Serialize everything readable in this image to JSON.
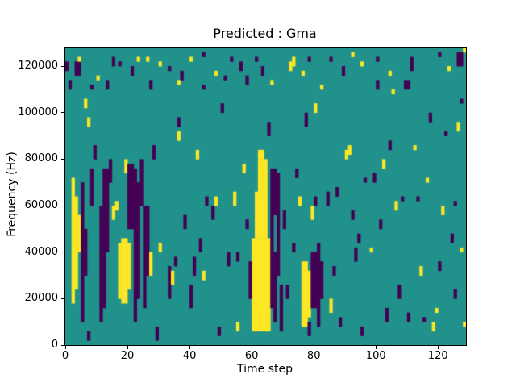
{
  "chart_data": {
    "type": "heatmap",
    "title": "Predicted : Gma",
    "xlabel": "Time step",
    "ylabel": "Frequency (Hz)",
    "x_range": [
      0,
      129
    ],
    "y_range": [
      0,
      128000
    ],
    "x_ticks": [
      0,
      20,
      40,
      60,
      80,
      100,
      120
    ],
    "y_ticks": [
      0,
      20000,
      40000,
      60000,
      80000,
      100000,
      120000
    ],
    "cell_size": [
      1,
      2000
    ],
    "colors": {
      "background": "#21918c",
      "y": "#fde725",
      "p": "#440154"
    },
    "legend": "none",
    "grid": false,
    "blocks": [
      [
        0,
        59,
        1,
        2,
        "p"
      ],
      [
        1,
        55,
        1,
        2,
        "p"
      ],
      [
        2,
        9,
        1,
        27,
        "y"
      ],
      [
        3,
        12,
        1,
        20,
        "y"
      ],
      [
        4,
        20,
        1,
        8,
        "y"
      ],
      [
        3,
        58,
        2,
        3,
        "p"
      ],
      [
        4,
        61,
        1,
        1,
        "y"
      ],
      [
        5,
        5,
        1,
        30,
        "p"
      ],
      [
        6,
        15,
        1,
        10,
        "p"
      ],
      [
        6,
        51,
        1,
        2,
        "y"
      ],
      [
        7,
        47,
        1,
        2,
        "y"
      ],
      [
        7,
        1,
        1,
        2,
        "p"
      ],
      [
        8,
        30,
        1,
        8,
        "p"
      ],
      [
        9,
        40,
        1,
        3,
        "p"
      ],
      [
        11,
        5,
        1,
        25,
        "p"
      ],
      [
        12,
        8,
        1,
        30,
        "p"
      ],
      [
        13,
        20,
        1,
        18,
        "p"
      ],
      [
        14,
        35,
        1,
        5,
        "p"
      ],
      [
        15,
        27,
        1,
        3,
        "y"
      ],
      [
        16,
        29,
        1,
        2,
        "y"
      ],
      [
        13,
        55,
        1,
        2,
        "p"
      ],
      [
        15,
        60,
        1,
        2,
        "p"
      ],
      [
        10,
        57,
        1,
        1,
        "y"
      ],
      [
        17,
        10,
        1,
        12,
        "y"
      ],
      [
        18,
        9,
        2,
        14,
        "y"
      ],
      [
        20,
        12,
        1,
        10,
        "y"
      ],
      [
        19,
        37,
        1,
        3,
        "y"
      ],
      [
        20,
        25,
        2,
        14,
        "p"
      ],
      [
        22,
        5,
        1,
        33,
        "p"
      ],
      [
        23,
        10,
        1,
        25,
        "p"
      ],
      [
        24,
        30,
        1,
        10,
        "p"
      ],
      [
        21,
        58,
        1,
        2,
        "p"
      ],
      [
        23,
        61,
        1,
        1,
        "y"
      ],
      [
        25,
        8,
        1,
        22,
        "p"
      ],
      [
        26,
        15,
        1,
        15,
        "p"
      ],
      [
        27,
        15,
        1,
        5,
        "y"
      ],
      [
        27,
        55,
        1,
        2,
        "p"
      ],
      [
        28,
        40,
        1,
        3,
        "p"
      ],
      [
        29,
        1,
        1,
        3,
        "p"
      ],
      [
        30,
        60,
        1,
        1,
        "y"
      ],
      [
        30,
        20,
        1,
        2,
        "y"
      ],
      [
        33,
        10,
        1,
        7,
        "p"
      ],
      [
        34,
        13,
        1,
        3,
        "y"
      ],
      [
        35,
        17,
        1,
        2,
        "p"
      ],
      [
        36,
        47,
        1,
        2,
        "p"
      ],
      [
        36,
        44,
        1,
        2,
        "y"
      ],
      [
        37,
        57,
        1,
        2,
        "p"
      ],
      [
        38,
        25,
        1,
        3,
        "p"
      ],
      [
        40,
        8,
        1,
        5,
        "p"
      ],
      [
        41,
        15,
        1,
        4,
        "p"
      ],
      [
        42,
        40,
        1,
        2,
        "y"
      ],
      [
        43,
        20,
        1,
        3,
        "p"
      ],
      [
        44,
        14,
        1,
        2,
        "y"
      ],
      [
        44,
        55,
        1,
        1,
        "p"
      ],
      [
        45,
        30,
        1,
        2,
        "p"
      ],
      [
        47,
        27,
        1,
        3,
        "p"
      ],
      [
        48,
        30,
        1,
        2,
        "y"
      ],
      [
        49,
        2,
        1,
        2,
        "p"
      ],
      [
        50,
        50,
        1,
        2,
        "p"
      ],
      [
        51,
        57,
        1,
        1,
        "p"
      ],
      [
        52,
        17,
        1,
        3,
        "p"
      ],
      [
        54,
        30,
        1,
        3,
        "y"
      ],
      [
        55,
        3,
        1,
        2,
        "y"
      ],
      [
        55,
        18,
        1,
        2,
        "p"
      ],
      [
        56,
        59,
        1,
        2,
        "p"
      ],
      [
        57,
        37,
        1,
        2,
        "y"
      ],
      [
        58,
        56,
        1,
        2,
        "p"
      ],
      [
        58,
        25,
        1,
        2,
        "p"
      ],
      [
        60,
        3,
        6,
        20,
        "y"
      ],
      [
        61,
        23,
        4,
        10,
        "y"
      ],
      [
        62,
        33,
        3,
        7,
        "y"
      ],
      [
        62,
        40,
        2,
        2,
        "y"
      ],
      [
        59,
        10,
        1,
        8,
        "p"
      ],
      [
        66,
        8,
        1,
        20,
        "p"
      ],
      [
        66,
        28,
        2,
        10,
        "p"
      ],
      [
        67,
        5,
        1,
        15,
        "p"
      ],
      [
        68,
        15,
        1,
        22,
        "p"
      ],
      [
        69,
        3,
        1,
        10,
        "p"
      ],
      [
        65,
        45,
        1,
        3,
        "p"
      ],
      [
        63,
        58,
        1,
        2,
        "p"
      ],
      [
        61,
        61,
        1,
        1,
        "p"
      ],
      [
        66,
        56,
        1,
        1,
        "y"
      ],
      [
        70,
        25,
        1,
        4,
        "p"
      ],
      [
        71,
        10,
        1,
        3,
        "p"
      ],
      [
        72,
        59,
        1,
        2,
        "y"
      ],
      [
        73,
        60,
        1,
        2,
        "y"
      ],
      [
        73,
        20,
        1,
        2,
        "p"
      ],
      [
        74,
        36,
        1,
        2,
        "p"
      ],
      [
        75,
        30,
        1,
        2,
        "y"
      ],
      [
        76,
        4,
        2,
        14,
        "y"
      ],
      [
        78,
        6,
        1,
        10,
        "y"
      ],
      [
        78,
        2,
        1,
        3,
        "p"
      ],
      [
        79,
        8,
        2,
        12,
        "p"
      ],
      [
        81,
        4,
        1,
        18,
        "p"
      ],
      [
        82,
        10,
        1,
        8,
        "p"
      ],
      [
        79,
        27,
        1,
        3,
        "y"
      ],
      [
        80,
        50,
        1,
        2,
        "y"
      ],
      [
        77,
        47,
        1,
        3,
        "p"
      ],
      [
        80,
        30,
        1,
        2,
        "p"
      ],
      [
        78,
        61,
        1,
        1,
        "p"
      ],
      [
        82,
        55,
        1,
        1,
        "y"
      ],
      [
        84,
        30,
        1,
        3,
        "p"
      ],
      [
        85,
        7,
        1,
        3,
        "y"
      ],
      [
        86,
        15,
        1,
        2,
        "p"
      ],
      [
        87,
        32,
        1,
        2,
        "p"
      ],
      [
        88,
        4,
        1,
        2,
        "p"
      ],
      [
        89,
        58,
        1,
        2,
        "p"
      ],
      [
        90,
        40,
        1,
        2,
        "y"
      ],
      [
        91,
        41,
        1,
        2,
        "y"
      ],
      [
        92,
        27,
        1,
        2,
        "p"
      ],
      [
        93,
        18,
        1,
        3,
        "p"
      ],
      [
        94,
        22,
        1,
        2,
        "p"
      ],
      [
        95,
        60,
        1,
        1,
        "y"
      ],
      [
        95,
        2,
        1,
        2,
        "p"
      ],
      [
        96,
        35,
        1,
        1,
        "p"
      ],
      [
        98,
        20,
        1,
        1,
        "y"
      ],
      [
        99,
        35,
        1,
        2,
        "p"
      ],
      [
        100,
        55,
        1,
        2,
        "p"
      ],
      [
        101,
        25,
        1,
        2,
        "p"
      ],
      [
        102,
        38,
        1,
        2,
        "y"
      ],
      [
        103,
        5,
        1,
        3,
        "p"
      ],
      [
        104,
        42,
        1,
        2,
        "p"
      ],
      [
        105,
        54,
        1,
        1,
        "y"
      ],
      [
        106,
        29,
        1,
        2,
        "y"
      ],
      [
        107,
        10,
        1,
        3,
        "p"
      ],
      [
        108,
        31,
        1,
        1,
        "p"
      ],
      [
        109,
        55,
        2,
        2,
        "p"
      ],
      [
        110,
        5,
        1,
        2,
        "p"
      ],
      [
        111,
        59,
        1,
        3,
        "p"
      ],
      [
        112,
        42,
        1,
        1,
        "y"
      ],
      [
        113,
        31,
        1,
        1,
        "p"
      ],
      [
        114,
        15,
        1,
        2,
        "y"
      ],
      [
        115,
        5,
        1,
        1,
        "p"
      ],
      [
        116,
        35,
        1,
        1,
        "y"
      ],
      [
        117,
        48,
        1,
        2,
        "p"
      ],
      [
        118,
        3,
        1,
        2,
        "y"
      ],
      [
        119,
        7,
        1,
        1,
        "y"
      ],
      [
        120,
        16,
        1,
        2,
        "p"
      ],
      [
        121,
        28,
        1,
        2,
        "y"
      ],
      [
        122,
        45,
        1,
        1,
        "p"
      ],
      [
        123,
        59,
        1,
        1,
        "y"
      ],
      [
        124,
        22,
        1,
        2,
        "p"
      ],
      [
        125,
        30,
        1,
        1,
        "p"
      ],
      [
        126,
        46,
        1,
        2,
        "y"
      ],
      [
        126,
        60,
        2,
        3,
        "p"
      ],
      [
        127,
        20,
        1,
        1,
        "y"
      ],
      [
        128,
        63,
        1,
        1,
        "y"
      ],
      [
        128,
        4,
        1,
        1,
        "y"
      ],
      [
        125,
        10,
        1,
        2,
        "p"
      ],
      [
        127,
        52,
        1,
        1,
        "p"
      ],
      [
        8,
        55,
        1,
        1,
        "p"
      ],
      [
        17,
        60,
        1,
        1,
        "p"
      ],
      [
        26,
        61,
        1,
        1,
        "y"
      ],
      [
        33,
        59,
        1,
        1,
        "p"
      ],
      [
        40,
        61,
        1,
        1,
        "y"
      ],
      [
        44,
        62,
        1,
        1,
        "p"
      ],
      [
        48,
        58,
        1,
        1,
        "y"
      ],
      [
        53,
        61,
        1,
        1,
        "p"
      ],
      [
        76,
        58,
        1,
        1,
        "y"
      ],
      [
        85,
        61,
        1,
        1,
        "p"
      ],
      [
        92,
        62,
        1,
        1,
        "y"
      ],
      [
        100,
        61,
        1,
        1,
        "p"
      ],
      [
        104,
        58,
        1,
        1,
        "y"
      ],
      [
        120,
        62,
        1,
        1,
        "p"
      ],
      [
        36,
        56,
        1,
        1,
        "y"
      ]
    ]
  }
}
